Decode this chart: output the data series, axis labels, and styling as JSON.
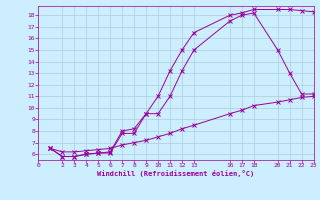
{
  "xlabel": "Windchill (Refroidissement éolien,°C)",
  "xlim": [
    0,
    23
  ],
  "ylim": [
    5.5,
    18.8
  ],
  "xticks": [
    0,
    2,
    3,
    4,
    5,
    6,
    7,
    8,
    9,
    10,
    11,
    12,
    13,
    16,
    17,
    18,
    20,
    21,
    22,
    23
  ],
  "yticks": [
    6,
    7,
    8,
    9,
    10,
    11,
    12,
    13,
    14,
    15,
    16,
    17,
    18
  ],
  "line_color": "#990099",
  "bg_color": "#cceeff",
  "grid_color": "#aaccdd",
  "line1_x": [
    1,
    2,
    3,
    4,
    5,
    6,
    7,
    8,
    9,
    10,
    11,
    12,
    13,
    16,
    17,
    18,
    20,
    21,
    22,
    23
  ],
  "line1_y": [
    6.5,
    5.8,
    5.8,
    6.0,
    6.1,
    6.1,
    7.8,
    7.8,
    9.5,
    9.5,
    11.0,
    13.2,
    15.0,
    17.5,
    18.0,
    18.2,
    15.0,
    13.0,
    11.2,
    11.2
  ],
  "line2_x": [
    1,
    2,
    3,
    4,
    5,
    6,
    7,
    8,
    9,
    10,
    11,
    12,
    13,
    16,
    17,
    18,
    20,
    21,
    22,
    23
  ],
  "line2_y": [
    6.5,
    5.8,
    5.8,
    6.0,
    6.1,
    6.2,
    8.0,
    8.2,
    9.5,
    11.0,
    13.2,
    15.0,
    16.5,
    18.0,
    18.2,
    18.5,
    18.5,
    18.5,
    18.4,
    18.3
  ],
  "line3_x": [
    1,
    2,
    3,
    4,
    5,
    6,
    7,
    8,
    9,
    10,
    11,
    12,
    13,
    16,
    17,
    18,
    20,
    21,
    22,
    23
  ],
  "line3_y": [
    6.5,
    6.2,
    6.2,
    6.3,
    6.4,
    6.5,
    6.8,
    7.0,
    7.2,
    7.5,
    7.8,
    8.2,
    8.5,
    9.5,
    9.8,
    10.2,
    10.5,
    10.7,
    10.9,
    11.0
  ]
}
